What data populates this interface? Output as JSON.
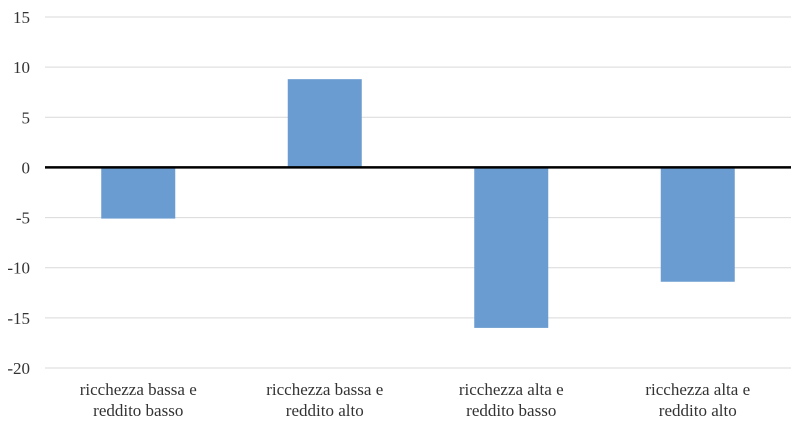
{
  "chart_data": {
    "type": "bar",
    "categories": [
      [
        "ricchezza bassa e",
        "reddito basso"
      ],
      [
        "ricchezza bassa e",
        "reddito alto"
      ],
      [
        "ricchezza alta e",
        "reddito basso"
      ],
      [
        "ricchezza alta e",
        "reddito alto"
      ]
    ],
    "values": [
      -5.1,
      8.8,
      -16.0,
      -11.4
    ],
    "title": "",
    "xlabel": "",
    "ylabel": "",
    "ylim": [
      -20,
      15
    ],
    "yticks": [
      "15",
      "10",
      "5",
      "0",
      "-5",
      "-10",
      "-15",
      "-20"
    ],
    "grid": true,
    "legend": "none",
    "bar_color": "#6a9bd1",
    "zero_line_color": "#000000",
    "gridline_color": "#d9d9d9"
  }
}
